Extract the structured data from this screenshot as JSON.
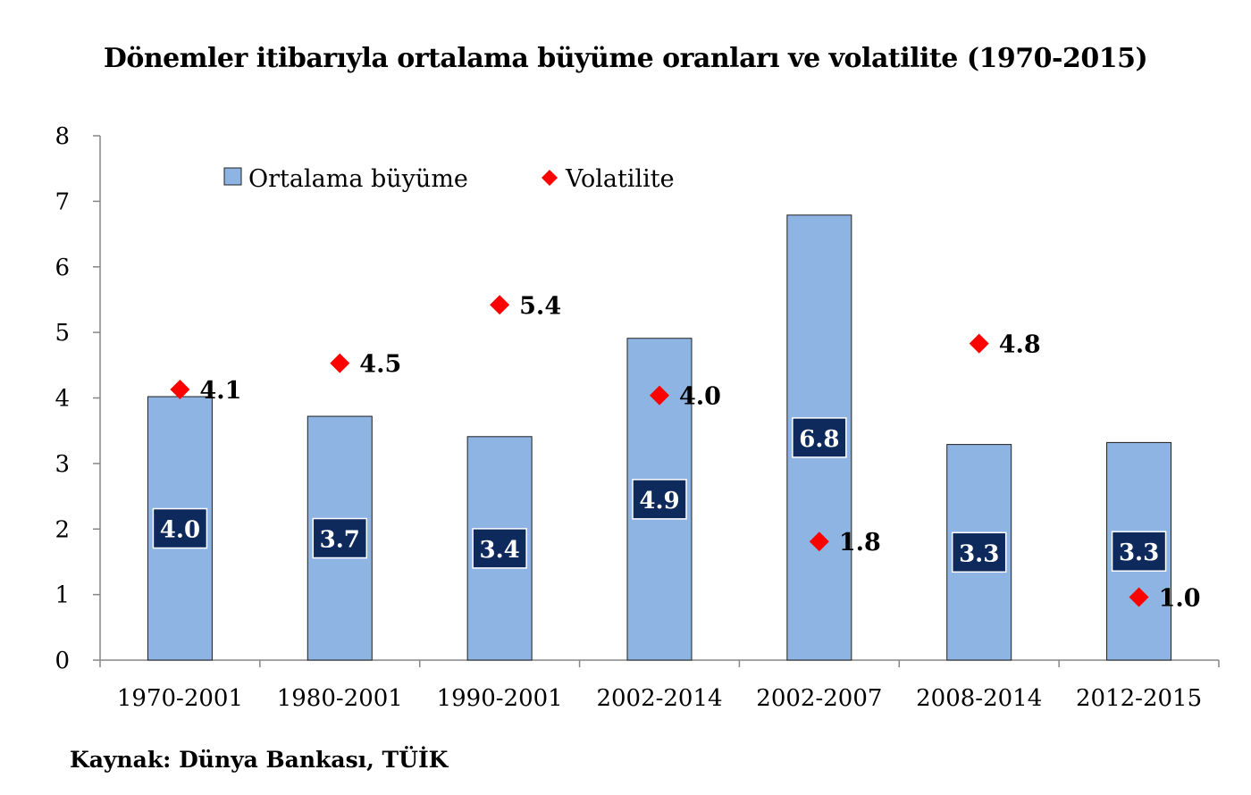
{
  "chart_data": {
    "type": "bar",
    "title": "Dönemler itibarıyla ortalama büyüme oranları ve volatilite (1970-2015)",
    "source": "Kaynak: Dünya Bankası, TÜİK",
    "categories": [
      "1970-2001",
      "1980-2001",
      "1990-2001",
      "2002-2014",
      "2002-2007",
      "2008-2014",
      "2012-2015"
    ],
    "ylim": [
      0,
      8
    ],
    "yticks": [
      "0",
      "1",
      "2",
      "3",
      "4",
      "5",
      "6",
      "7",
      "8"
    ],
    "grid": false,
    "legend_position": "top",
    "series": [
      {
        "name": "Ortalama büyüme",
        "type": "bar",
        "color": "#8EB4E3",
        "values": [
          4.02,
          3.72,
          3.41,
          4.91,
          6.79,
          3.29,
          3.32
        ],
        "labels": [
          "4.0",
          "3.7",
          "3.4",
          "4.9",
          "6.8",
          "3.3",
          "3.3"
        ]
      },
      {
        "name": "Volatilite",
        "type": "scatter",
        "marker": "diamond",
        "color": "#FF0000",
        "values": [
          4.13,
          4.53,
          5.42,
          4.04,
          1.81,
          4.83,
          0.96
        ],
        "labels": [
          "4.1",
          "4.5",
          "5.4",
          "4.0",
          "1.8",
          "4.8",
          "1.0"
        ]
      }
    ]
  }
}
